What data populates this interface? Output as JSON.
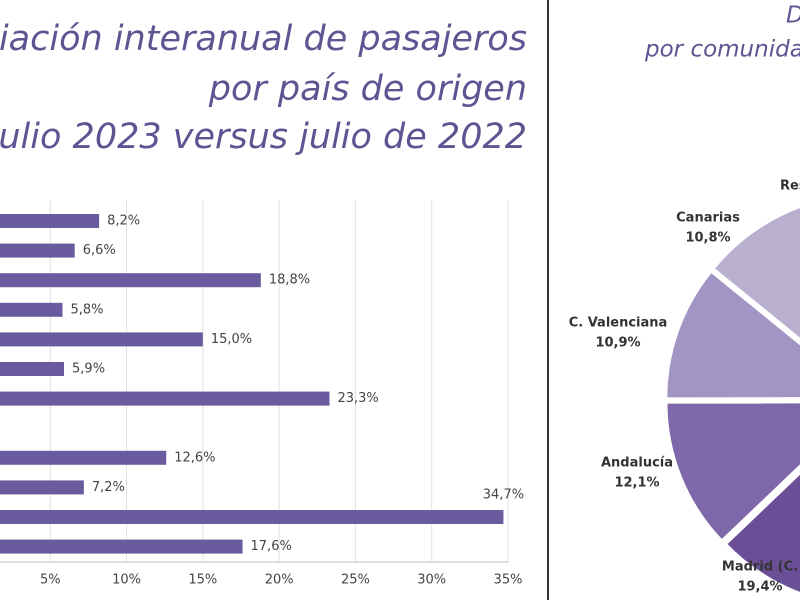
{
  "chart_data": [
    {
      "type": "bar",
      "title_lines": [
        "iación interanual de pasajeros",
        "por país de origen",
        "ulio 2023 versus julio de 2022"
      ],
      "categories": [
        null,
        null,
        null,
        null,
        null,
        null,
        null,
        null,
        null,
        null,
        null,
        null
      ],
      "values": [
        8.2,
        6.6,
        18.8,
        5.8,
        15.0,
        5.9,
        23.3,
        null,
        12.6,
        7.2,
        34.7,
        17.6
      ],
      "value_labels": [
        "8,2%",
        "6,6%",
        "18,8%",
        "5,8%",
        "15,0%",
        "5,9%",
        "23,3%",
        null,
        "12,6%",
        "7,2%",
        "34,7%",
        "17,6%"
      ],
      "color": "#6a5b9e",
      "orientation": "horizontal",
      "xlim": [
        0,
        35
      ],
      "xticks": [
        {
          "value": 5,
          "label": "5%"
        },
        {
          "value": 10,
          "label": "10%"
        },
        {
          "value": 15,
          "label": "15%"
        },
        {
          "value": 20,
          "label": "20%"
        },
        {
          "value": 25,
          "label": "25%"
        },
        {
          "value": 30,
          "label": "30%"
        },
        {
          "value": 35,
          "label": "35%"
        }
      ],
      "grid": true
    },
    {
      "type": "pie",
      "title_lines": [
        "D",
        "por comunida"
      ],
      "annotation": "Res",
      "categories": [
        "Canarias",
        "C. Valenciana",
        "Andalucía",
        "Madrid (C."
      ],
      "values": [
        10.8,
        10.9,
        12.1,
        19.4
      ],
      "value_labels": [
        "10,8%",
        "10,9%",
        "12,1%",
        "19,4%"
      ],
      "colors": [
        "#b9b0cf",
        "#a295c3",
        "#7f68a9",
        "#6a4f97"
      ]
    }
  ]
}
